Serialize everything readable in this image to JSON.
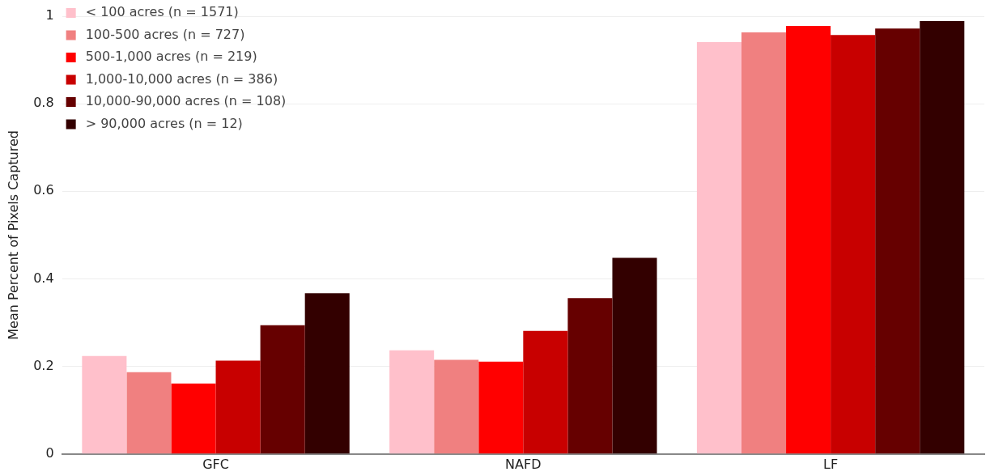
{
  "chart_data": {
    "type": "bar",
    "ylabel": "Mean Percent of Pixels Captured",
    "categories": [
      "GFC",
      "NAFD",
      "LF"
    ],
    "series": [
      {
        "name": "< 100 acres (n = 1571)",
        "color": "#ffc0cb",
        "values": [
          0.224,
          0.237,
          0.941
        ]
      },
      {
        "name": "100-500 acres (n = 727)",
        "color": "#f08080",
        "values": [
          0.187,
          0.215,
          0.963
        ]
      },
      {
        "name": "500-1,000 acres (n = 219)",
        "color": "#ff0000",
        "values": [
          0.161,
          0.211,
          0.978
        ]
      },
      {
        "name": "1,000-10,000 acres (n = 386)",
        "color": "#c80000",
        "values": [
          0.213,
          0.281,
          0.957
        ]
      },
      {
        "name": "10,000-90,000 acres (n = 108)",
        "color": "#660000",
        "values": [
          0.294,
          0.356,
          0.972
        ]
      },
      {
        "name": "> 90,000 acres (n = 12)",
        "color": "#330000",
        "values": [
          0.367,
          0.448,
          0.989
        ]
      }
    ],
    "ylim": [
      0,
      1
    ],
    "yticks": [
      0,
      0.2,
      0.4,
      0.6,
      0.8,
      1
    ],
    "grid": "y",
    "legend": "top left"
  }
}
